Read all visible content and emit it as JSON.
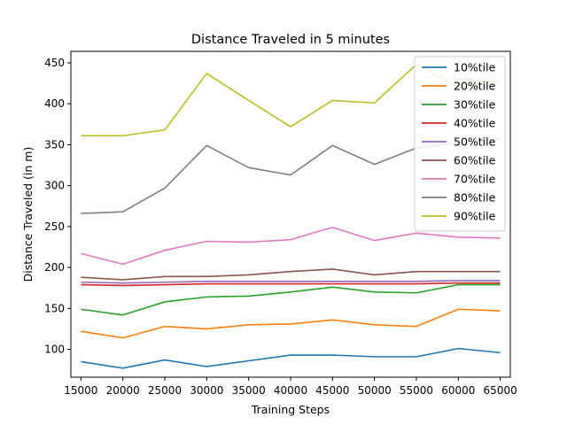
{
  "chart_data": {
    "type": "line",
    "title": "Distance Traveled in 5 minutes",
    "xlabel": "Training Steps",
    "ylabel": "Distance Traveled (in m)",
    "x": [
      15000,
      20000,
      25000,
      30000,
      35000,
      40000,
      45000,
      50000,
      55000,
      60000,
      65000
    ],
    "xticks": [
      15000,
      20000,
      25000,
      30000,
      35000,
      40000,
      45000,
      50000,
      55000,
      60000,
      65000
    ],
    "yticks": [
      100,
      150,
      200,
      250,
      300,
      350,
      400,
      450
    ],
    "xlim": [
      13800,
      66200
    ],
    "ylim": [
      66,
      464
    ],
    "grid": false,
    "legend_position": "top-right",
    "series": [
      {
        "name": "10%tile",
        "color": "#1f77b4",
        "values": [
          85,
          77,
          87,
          79,
          86,
          93,
          93,
          91,
          91,
          101,
          96
        ]
      },
      {
        "name": "20%tile",
        "color": "#ff7f0e",
        "values": [
          122,
          114,
          128,
          125,
          130,
          131,
          136,
          130,
          128,
          149,
          147
        ]
      },
      {
        "name": "30%tile",
        "color": "#2ca02c",
        "values": [
          149,
          142,
          158,
          164,
          165,
          170,
          176,
          170,
          169,
          179,
          179
        ]
      },
      {
        "name": "40%tile",
        "color": "#d62728",
        "values": [
          179,
          178,
          179,
          180,
          180,
          180,
          180,
          180,
          180,
          181,
          181
        ]
      },
      {
        "name": "50%tile",
        "color": "#9467bd",
        "values": [
          182,
          181,
          182,
          183,
          183,
          183,
          183,
          183,
          183,
          184,
          184
        ]
      },
      {
        "name": "60%tile",
        "color": "#8c564b",
        "values": [
          188,
          185,
          189,
          189,
          191,
          195,
          198,
          191,
          195,
          195,
          195
        ]
      },
      {
        "name": "70%tile",
        "color": "#e377c2",
        "values": [
          217,
          204,
          221,
          232,
          231,
          234,
          249,
          233,
          242,
          237,
          236
        ]
      },
      {
        "name": "80%tile",
        "color": "#7f7f7f",
        "values": [
          266,
          268,
          297,
          349,
          322,
          313,
          349,
          326,
          346,
          352,
          357
        ]
      },
      {
        "name": "90%tile",
        "color": "#bcbd22",
        "values": [
          361,
          361,
          368,
          437,
          404,
          372,
          404,
          401,
          448,
          420,
          428
        ]
      }
    ]
  }
}
